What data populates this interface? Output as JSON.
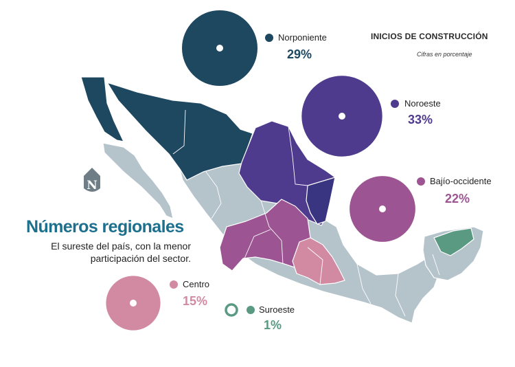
{
  "header": {
    "title": "INICIOS DE CONSTRUCCIÓN",
    "subtitle": "Cifras en porcentaje"
  },
  "headline": {
    "title": "Números regionales",
    "line1": "El sureste del país, con la menor",
    "line2": "participación del sector."
  },
  "logo": {
    "letter": "N"
  },
  "colors": {
    "base_states": "#b5c3cb",
    "norponiente": "#1e4760",
    "noroeste": "#4f3b8e",
    "bajio_occidente": "#9c5592",
    "centro": "#d28aa3",
    "suroeste": "#5a9a82",
    "headline": "#1c6f8d"
  },
  "regions": [
    {
      "key": "norponiente",
      "name": "Norponiente",
      "value": "29%",
      "share": 0.29
    },
    {
      "key": "noroeste",
      "name": "Noroeste",
      "value": "33%",
      "share": 0.33
    },
    {
      "key": "bajio_occidente",
      "name": "Bajío-occidente",
      "value": "22%",
      "share": 0.22
    },
    {
      "key": "centro",
      "name": "Centro",
      "value": "15%",
      "share": 0.15
    },
    {
      "key": "suroeste",
      "name": "Suroeste",
      "value": "1%",
      "share": 0.01
    }
  ]
}
